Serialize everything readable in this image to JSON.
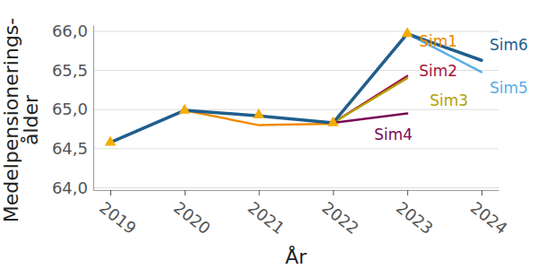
{
  "chart_data": {
    "type": "line",
    "xlabel": "År",
    "ylabel": "Medelpensionerings-ålder",
    "x": [
      2019,
      2020,
      2021,
      2022,
      2023,
      2024
    ],
    "xlim": [
      2018.77,
      2024.23
    ],
    "xticks": [
      2019,
      2020,
      2021,
      2022,
      2023,
      2024
    ],
    "ylim": [
      63.97,
      66.08
    ],
    "yticks": [
      {
        "value": 64.0,
        "label": "64,0"
      },
      {
        "value": 64.5,
        "label": "64,5"
      },
      {
        "value": 65.0,
        "label": "65,0"
      },
      {
        "value": 65.5,
        "label": "65,5"
      },
      {
        "value": 66.0,
        "label": "66,0"
      }
    ],
    "grid": true,
    "series": [
      {
        "name": "Sim1",
        "color": "#f08a00",
        "values": [
          64.58,
          64.99,
          64.8,
          64.82,
          65.97,
          null
        ]
      },
      {
        "name": "Sim2",
        "color": "#a3173f",
        "values": [
          null,
          null,
          null,
          64.83,
          65.43,
          null
        ]
      },
      {
        "name": "Sim3",
        "color": "#b3a100",
        "values": [
          null,
          null,
          null,
          64.83,
          65.4,
          null
        ]
      },
      {
        "name": "Sim4",
        "color": "#7a0a55",
        "values": [
          null,
          null,
          null,
          64.83,
          64.95,
          null
        ]
      },
      {
        "name": "Sim5",
        "color": "#5aaee4",
        "values": [
          null,
          null,
          null,
          64.83,
          65.97,
          65.48
        ]
      },
      {
        "name": "Sim6",
        "color": "#1f5e8e",
        "values": [
          64.58,
          64.99,
          64.92,
          64.83,
          65.97,
          65.63
        ]
      },
      {
        "type": "scatter",
        "marker": "triangle",
        "color": "#f5ab00",
        "values": [
          64.58,
          64.99,
          64.93,
          64.83,
          65.97,
          null
        ]
      }
    ]
  }
}
